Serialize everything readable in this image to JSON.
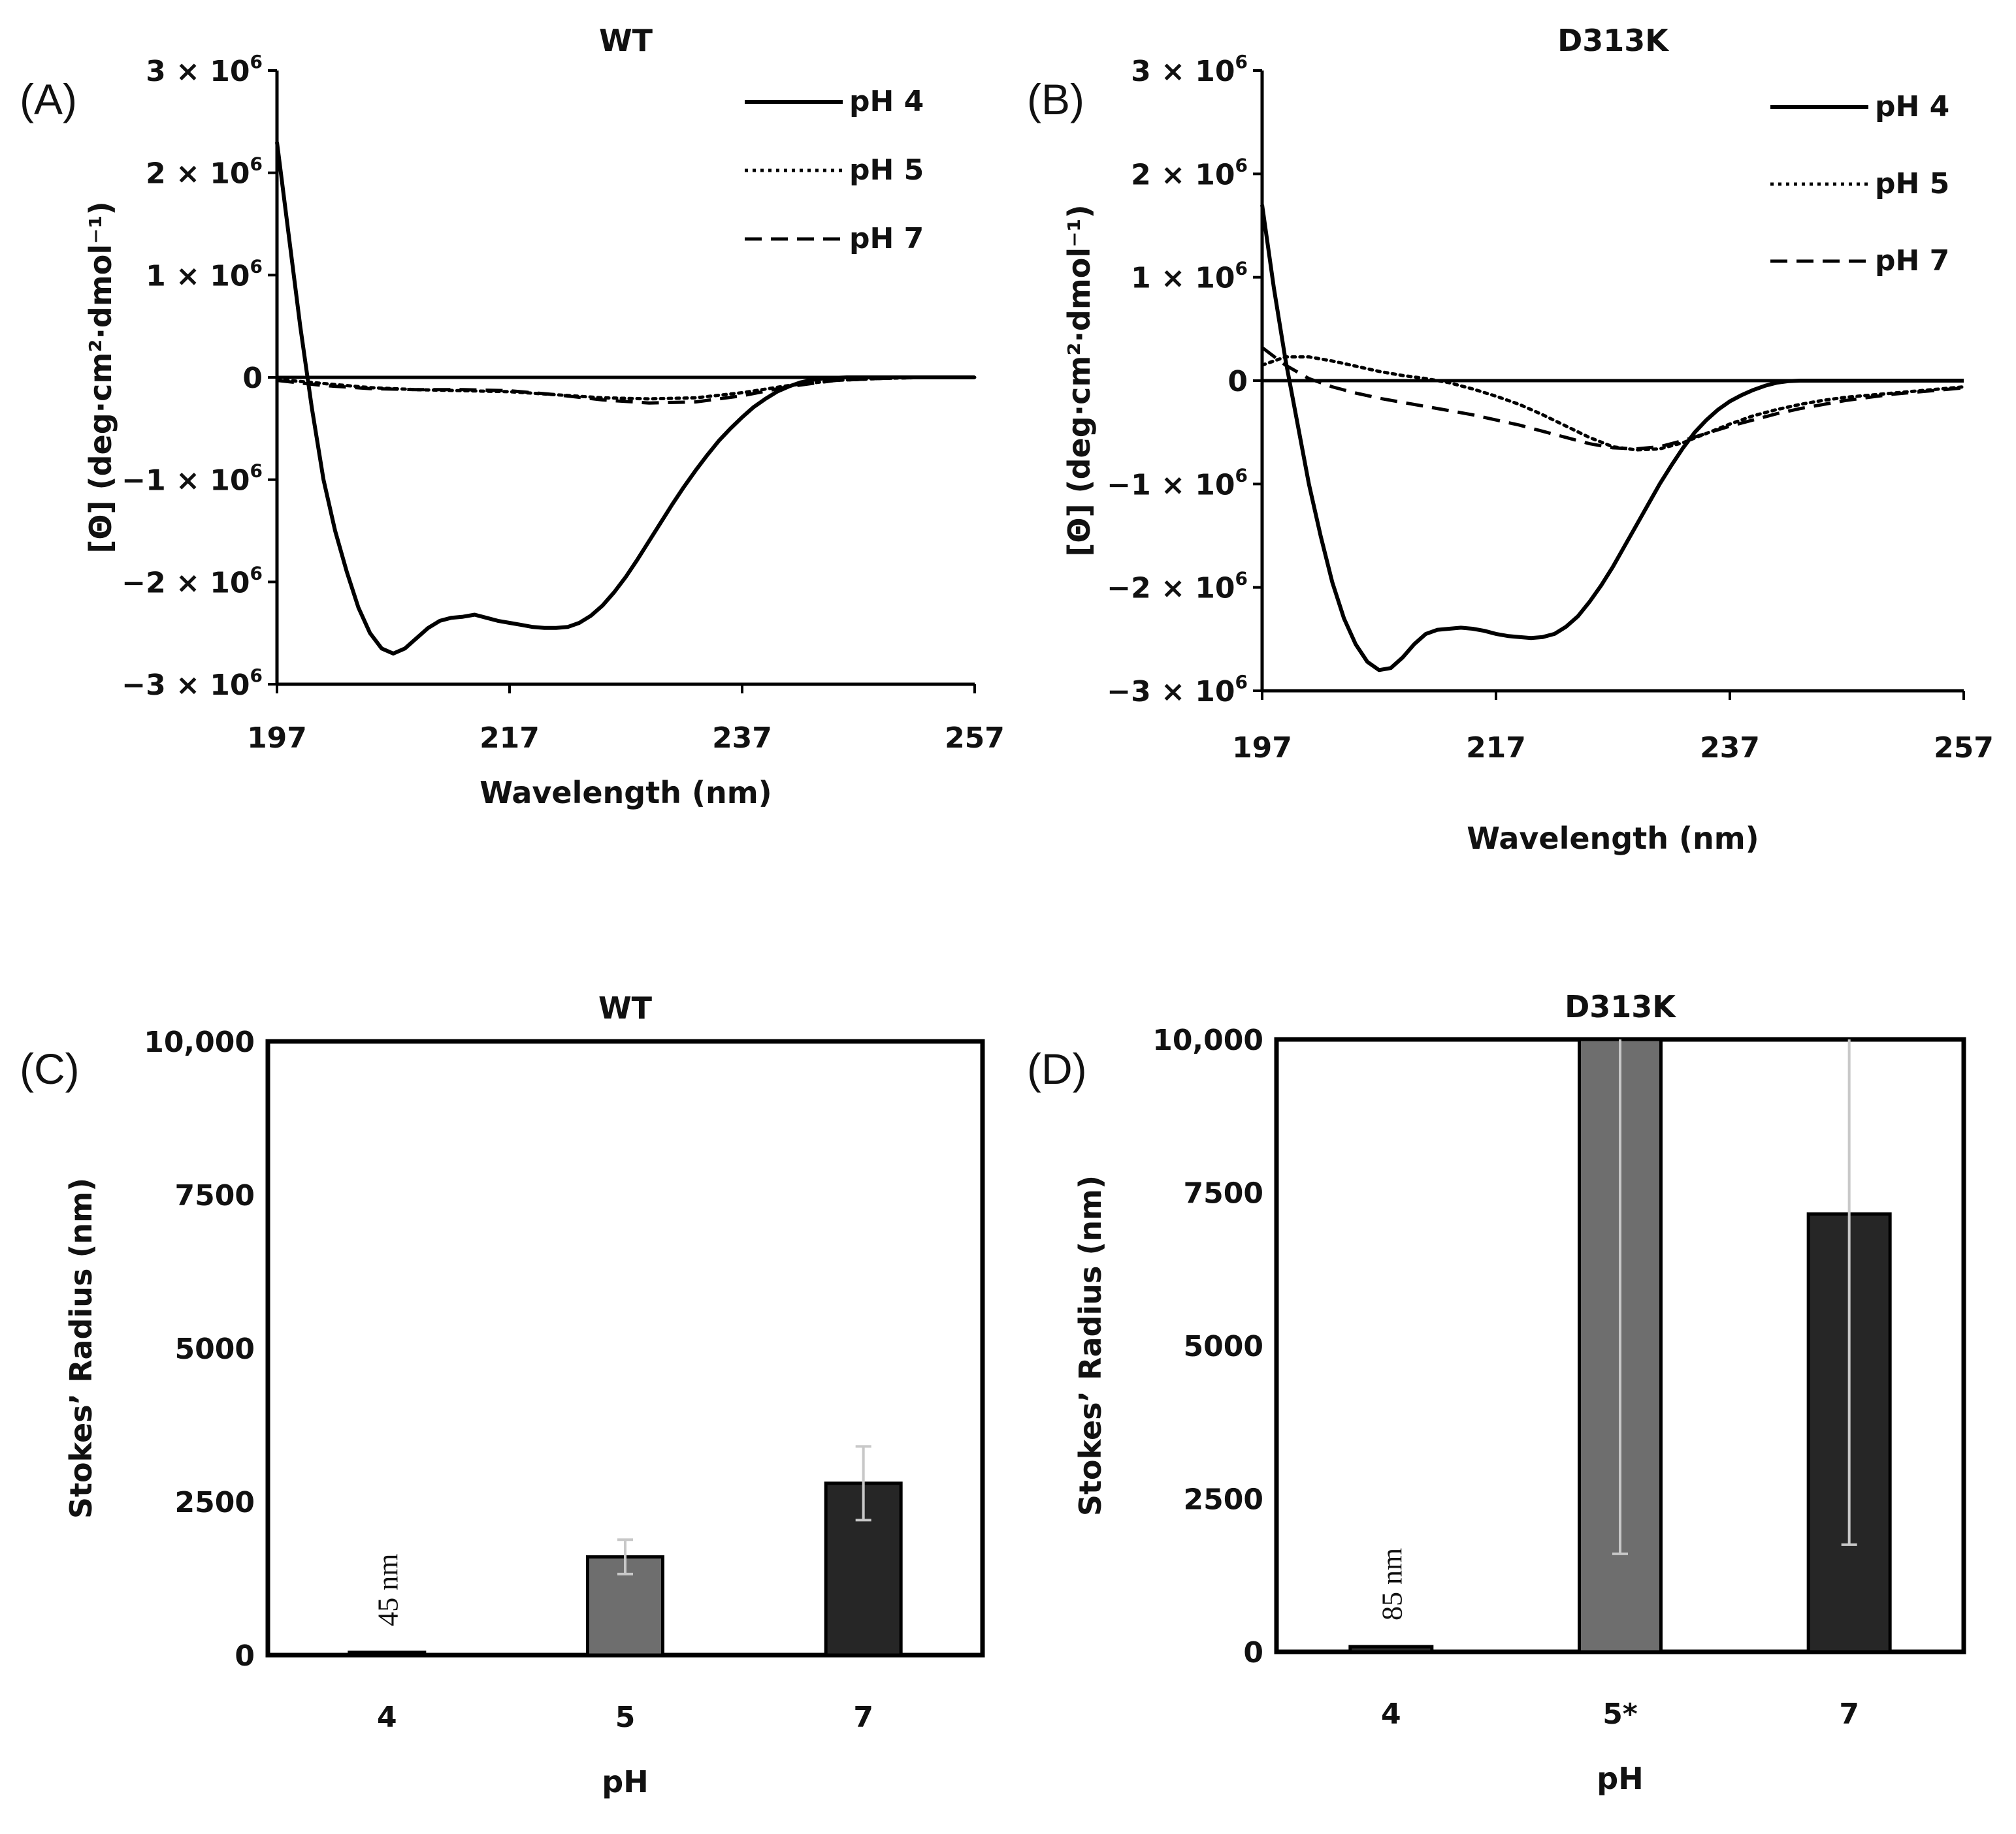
{
  "chart_data": [
    {
      "panel": "(A)",
      "title": "WT",
      "type": "line",
      "xlabel": "Wavelength (nm)",
      "ylabel": "[Θ] (deg·cm²·dmol⁻¹)",
      "xlim": [
        197,
        257
      ],
      "ylim": [
        -3000000,
        3000000
      ],
      "x_ticks": [
        "197",
        "217",
        "237",
        "257"
      ],
      "y_ticks": [
        {
          "value": 3000000,
          "mantissa": "3",
          "times": " × 10",
          "exp": "6"
        },
        {
          "value": 2000000,
          "mantissa": "2",
          "times": " × 10",
          "exp": "6"
        },
        {
          "value": 1000000,
          "mantissa": "1",
          "times": " × 10",
          "exp": "6"
        },
        {
          "value": 0,
          "mantissa": "0",
          "times": "",
          "exp": ""
        },
        {
          "value": -1000000,
          "mantissa": "−1",
          "times": " × 10",
          "exp": "6"
        },
        {
          "value": -2000000,
          "mantissa": "−2",
          "times": " × 10",
          "exp": "6"
        },
        {
          "value": -3000000,
          "mantissa": "−3",
          "times": " × 10",
          "exp": "6"
        }
      ],
      "legend_position": "top-right",
      "series": [
        {
          "name": "pH 4",
          "style": "solid",
          "x": [
            197,
            198,
            199,
            200,
            201,
            202,
            203,
            204,
            205,
            206,
            207,
            208,
            209,
            210,
            211,
            212,
            213,
            214,
            215,
            216,
            217,
            218,
            219,
            220,
            221,
            222,
            223,
            224,
            225,
            226,
            227,
            228,
            229,
            230,
            231,
            232,
            233,
            234,
            235,
            236,
            237,
            238,
            239,
            240,
            241,
            242,
            243,
            244,
            245,
            246,
            247,
            248,
            249,
            250,
            251,
            252,
            253,
            254,
            255,
            256,
            257
          ],
          "y": [
            2300000,
            1400000,
            500000,
            -300000,
            -1000000,
            -1500000,
            -1900000,
            -2250000,
            -2500000,
            -2650000,
            -2700000,
            -2650000,
            -2550000,
            -2450000,
            -2380000,
            -2350000,
            -2340000,
            -2320000,
            -2350000,
            -2380000,
            -2400000,
            -2420000,
            -2440000,
            -2450000,
            -2450000,
            -2440000,
            -2400000,
            -2330000,
            -2230000,
            -2100000,
            -1950000,
            -1780000,
            -1600000,
            -1420000,
            -1240000,
            -1070000,
            -910000,
            -760000,
            -620000,
            -500000,
            -390000,
            -290000,
            -210000,
            -140000,
            -90000,
            -50000,
            -25000,
            -10000,
            -5000,
            0,
            0,
            0,
            0,
            0,
            0,
            0,
            0,
            0,
            0,
            0,
            0
          ]
        },
        {
          "name": "pH 5",
          "style": "dotted",
          "x": [
            197,
            201,
            205,
            209,
            213,
            217,
            221,
            225,
            229,
            233,
            237,
            241,
            245,
            249,
            253,
            257
          ],
          "y": [
            -20000,
            -60000,
            -100000,
            -120000,
            -130000,
            -140000,
            -170000,
            -200000,
            -210000,
            -200000,
            -150000,
            -80000,
            -30000,
            -10000,
            0,
            0
          ]
        },
        {
          "name": "pH 7",
          "style": "dashed",
          "x": [
            197,
            201,
            205,
            209,
            213,
            217,
            221,
            225,
            229,
            233,
            237,
            241,
            245,
            249,
            253,
            257
          ],
          "y": [
            -30000,
            -80000,
            -110000,
            -120000,
            -120000,
            -130000,
            -170000,
            -220000,
            -250000,
            -240000,
            -180000,
            -90000,
            -30000,
            -10000,
            0,
            0
          ]
        }
      ]
    },
    {
      "panel": "(B)",
      "title": "D313K",
      "type": "line",
      "xlabel": "Wavelength (nm)",
      "ylabel": "[Θ] (deg·cm²·dmol⁻¹)",
      "xlim": [
        197,
        257
      ],
      "ylim": [
        -3000000,
        3000000
      ],
      "x_ticks": [
        "197",
        "217",
        "237",
        "257"
      ],
      "y_ticks": [
        {
          "value": 3000000,
          "mantissa": "3",
          "times": " × 10",
          "exp": "6"
        },
        {
          "value": 2000000,
          "mantissa": "2",
          "times": " × 10",
          "exp": "6"
        },
        {
          "value": 1000000,
          "mantissa": "1",
          "times": " × 10",
          "exp": "6"
        },
        {
          "value": 0,
          "mantissa": "0",
          "times": "",
          "exp": ""
        },
        {
          "value": -1000000,
          "mantissa": "−1",
          "times": " × 10",
          "exp": "6"
        },
        {
          "value": -2000000,
          "mantissa": "−2",
          "times": " × 10",
          "exp": "6"
        },
        {
          "value": -3000000,
          "mantissa": "−3",
          "times": " × 10",
          "exp": "6"
        }
      ],
      "legend_position": "top-right",
      "series": [
        {
          "name": "pH 4",
          "style": "solid",
          "x": [
            197,
            198,
            199,
            200,
            201,
            202,
            203,
            204,
            205,
            206,
            207,
            208,
            209,
            210,
            211,
            212,
            213,
            214,
            215,
            216,
            217,
            218,
            219,
            220,
            221,
            222,
            223,
            224,
            225,
            226,
            227,
            228,
            229,
            230,
            231,
            232,
            233,
            234,
            235,
            236,
            237,
            238,
            239,
            240,
            241,
            242,
            243,
            244,
            245,
            246,
            247,
            248,
            249,
            250,
            251,
            252,
            253,
            254,
            255,
            256,
            257
          ],
          "y": [
            1700000,
            900000,
            200000,
            -400000,
            -1000000,
            -1500000,
            -1950000,
            -2300000,
            -2550000,
            -2720000,
            -2800000,
            -2780000,
            -2680000,
            -2550000,
            -2450000,
            -2410000,
            -2400000,
            -2390000,
            -2400000,
            -2420000,
            -2450000,
            -2470000,
            -2480000,
            -2490000,
            -2480000,
            -2450000,
            -2380000,
            -2280000,
            -2140000,
            -1980000,
            -1800000,
            -1600000,
            -1400000,
            -1200000,
            -1000000,
            -820000,
            -650000,
            -500000,
            -380000,
            -280000,
            -200000,
            -140000,
            -90000,
            -50000,
            -20000,
            -5000,
            0,
            0,
            0,
            0,
            0,
            0,
            0,
            0,
            0,
            0,
            0,
            0,
            0,
            0,
            0
          ]
        },
        {
          "name": "pH 5",
          "style": "dotted",
          "x": [
            197,
            199,
            201,
            203,
            205,
            207,
            209,
            211,
            213,
            215,
            217,
            219,
            221,
            223,
            225,
            227,
            229,
            231,
            233,
            235,
            237,
            239,
            241,
            243,
            245,
            247,
            249,
            251,
            253,
            255,
            257
          ],
          "y": [
            150000,
            230000,
            230000,
            190000,
            140000,
            90000,
            50000,
            20000,
            -20000,
            -80000,
            -150000,
            -230000,
            -330000,
            -440000,
            -550000,
            -640000,
            -670000,
            -660000,
            -600000,
            -510000,
            -420000,
            -340000,
            -280000,
            -230000,
            -190000,
            -160000,
            -140000,
            -120000,
            -100000,
            -80000,
            -60000
          ]
        },
        {
          "name": "pH 7",
          "style": "dashed",
          "x": [
            197,
            199,
            201,
            203,
            205,
            207,
            209,
            211,
            213,
            215,
            217,
            219,
            221,
            223,
            225,
            227,
            229,
            231,
            233,
            235,
            237,
            239,
            241,
            243,
            245,
            247,
            249,
            251,
            253,
            255,
            257
          ],
          "y": [
            320000,
            150000,
            20000,
            -60000,
            -120000,
            -170000,
            -210000,
            -250000,
            -290000,
            -330000,
            -380000,
            -430000,
            -490000,
            -550000,
            -610000,
            -650000,
            -660000,
            -640000,
            -580000,
            -510000,
            -440000,
            -380000,
            -320000,
            -270000,
            -230000,
            -190000,
            -160000,
            -130000,
            -110000,
            -90000,
            -70000
          ]
        }
      ]
    },
    {
      "panel": "(C)",
      "title": "WT",
      "type": "bar",
      "xlabel": "pH",
      "ylabel": "Stokes’ Radius (nm)",
      "ylim": [
        0,
        10000
      ],
      "y_ticks": [
        "0",
        "2500",
        "5000",
        "7500",
        "10,000"
      ],
      "categories": [
        "4",
        "5",
        "7"
      ],
      "values": [
        45,
        1600,
        2800
      ],
      "errors": [
        0,
        280,
        600
      ],
      "annotations": [
        "45 nm",
        "",
        ""
      ]
    },
    {
      "panel": "(D)",
      "title": "D313K",
      "type": "bar",
      "xlabel": "pH",
      "ylabel": "Stokes’ Radius (nm)",
      "ylim": [
        0,
        10000
      ],
      "y_ticks": [
        "0",
        "2500",
        "5000",
        "7500",
        "10,000"
      ],
      "categories": [
        "4",
        "5*",
        "7"
      ],
      "values": [
        85,
        10000,
        7150
      ],
      "errors": [
        0,
        8400,
        5400
      ],
      "annotations": [
        "85 nm",
        "",
        ""
      ]
    }
  ]
}
